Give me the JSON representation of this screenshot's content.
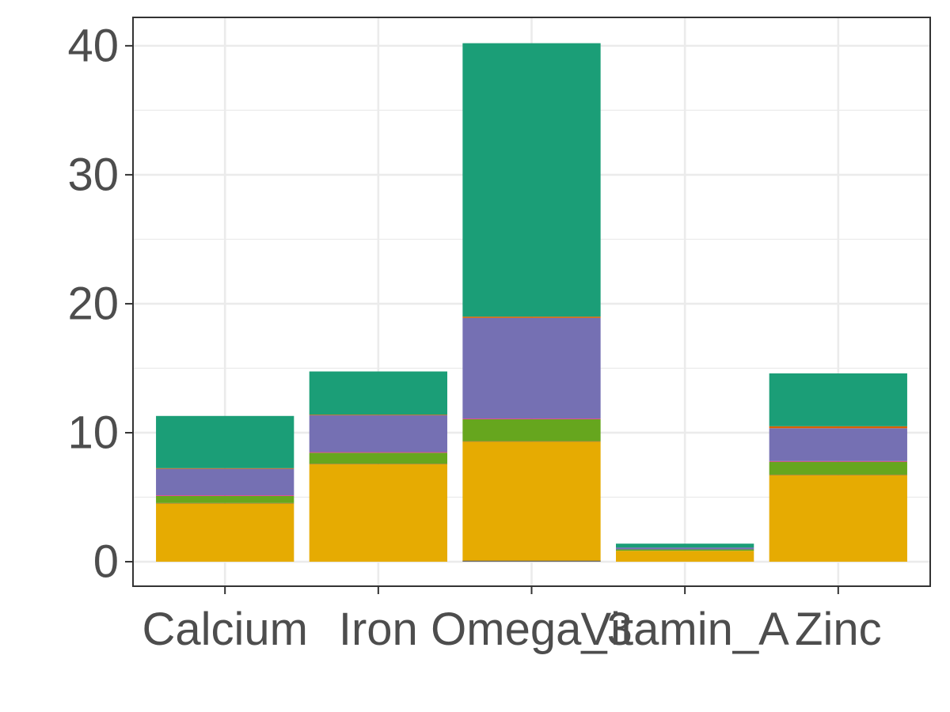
{
  "chart_data": {
    "type": "bar",
    "stacked": true,
    "categories": [
      "Calcium",
      "Iron",
      "Omega_3",
      "Vitamin_A",
      "Zinc"
    ],
    "yticks": [
      0,
      10,
      20,
      30,
      40
    ],
    "ylim": [
      -1.9,
      42.2
    ],
    "grid": true,
    "legend": "none",
    "series": [
      {
        "color": "#E6AB02",
        "values": [
          4.5,
          7.55,
          9.3,
          0.85,
          6.7
        ]
      },
      {
        "color": "#A6761D",
        "values": [
          0.05,
          0.05,
          0.05,
          0.0,
          0.05
        ]
      },
      {
        "color": "#66A61E",
        "values": [
          0.55,
          0.85,
          1.7,
          0.1,
          1.0
        ]
      },
      {
        "color": "#E7298A",
        "values": [
          0.05,
          0.05,
          0.05,
          0.0,
          0.05
        ]
      },
      {
        "color": "#7570B3",
        "values": [
          2.05,
          2.85,
          7.8,
          0.15,
          2.55
        ]
      },
      {
        "color": "#D95F02",
        "values": [
          0.05,
          0.05,
          0.1,
          0.0,
          0.15
        ]
      },
      {
        "color": "#1B9E77",
        "values": [
          4.05,
          3.35,
          21.2,
          0.3,
          4.1
        ]
      }
    ],
    "baseline_segment": {
      "category": "Omega_3",
      "color": "#666666",
      "value": 0.08
    }
  }
}
